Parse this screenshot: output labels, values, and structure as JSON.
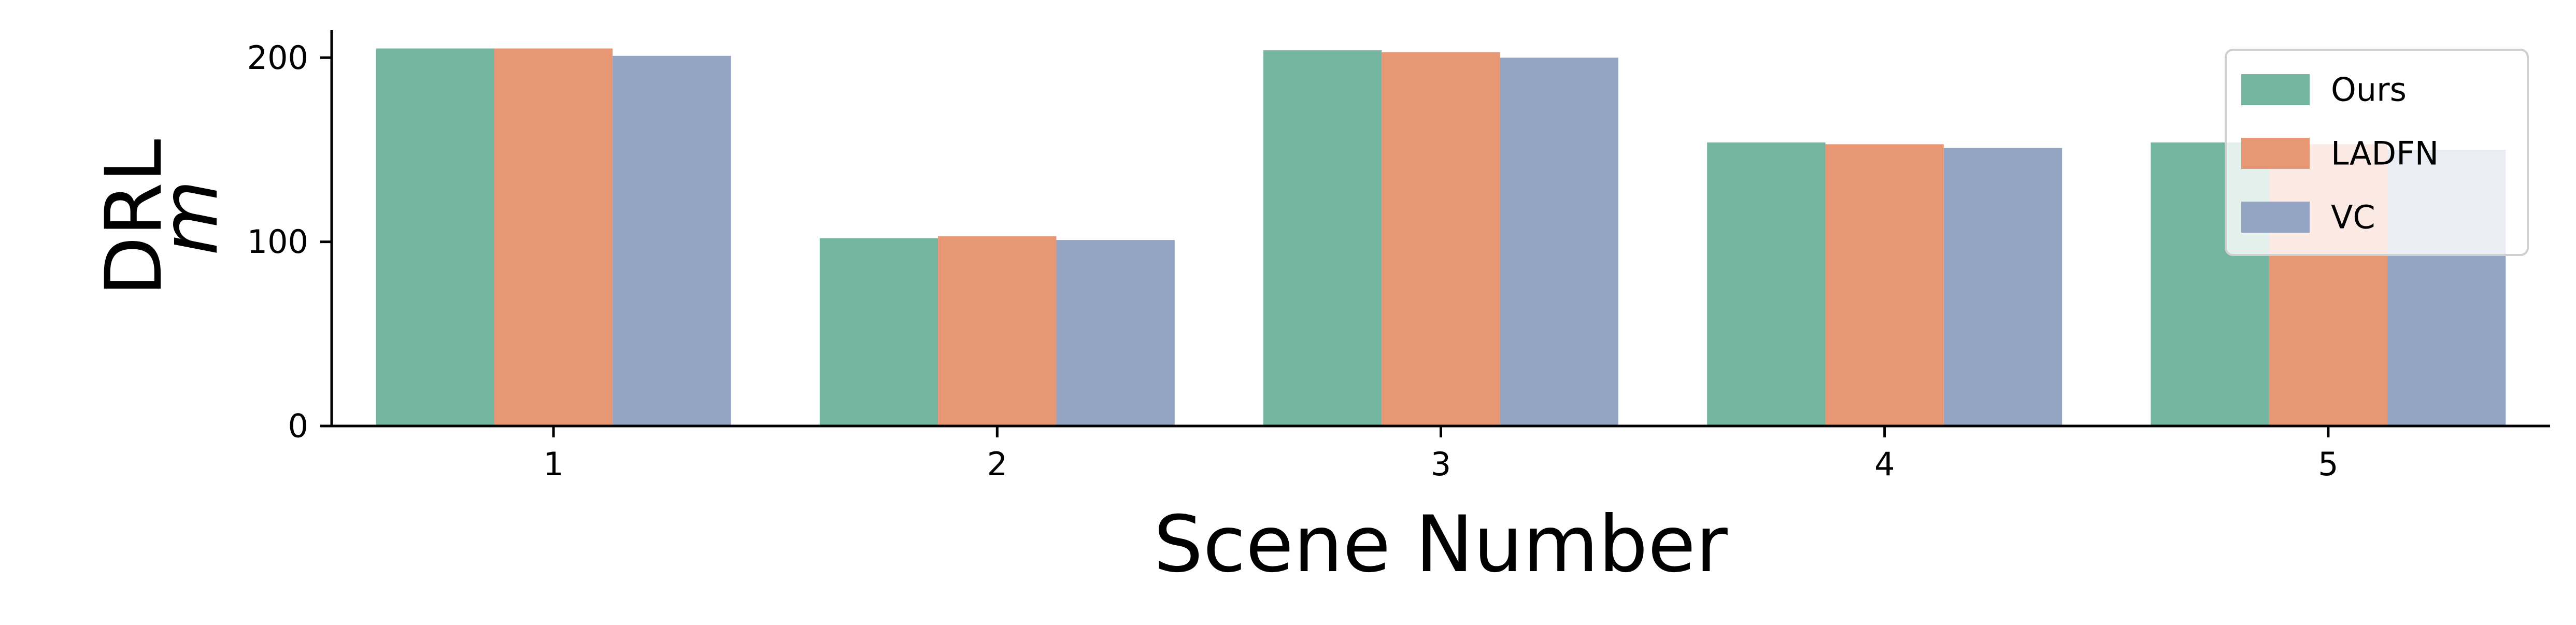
{
  "chart_data": {
    "type": "bar",
    "categories": [
      "1",
      "2",
      "3",
      "4",
      "5"
    ],
    "series": [
      {
        "name": "Ours",
        "color": "#73b59f",
        "values": [
          205,
          102,
          204,
          154,
          154
        ]
      },
      {
        "name": "LADFN",
        "color": "#e89774",
        "values": [
          205,
          103,
          203,
          153,
          153
        ]
      },
      {
        "name": "VC",
        "color": "#94a4c3",
        "values": [
          201,
          101,
          200,
          151,
          150
        ]
      }
    ],
    "title": "",
    "xlabel": "Scene Number",
    "ylabel_line1": "DRL",
    "ylabel_line2": "m",
    "ylim": [
      0,
      215
    ],
    "yticks": [
      0,
      100,
      200
    ],
    "ytick_labels": [
      "0",
      "100",
      "200"
    ],
    "grid": false,
    "legend_position": "top-right"
  }
}
